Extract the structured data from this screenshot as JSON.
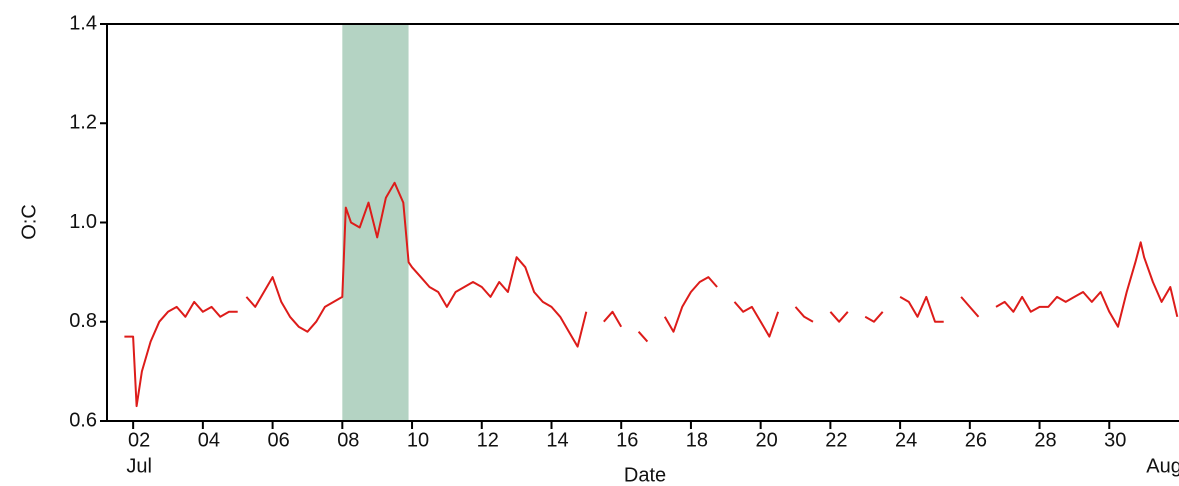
{
  "chart_data": {
    "type": "line",
    "xlabel": "Date",
    "ylabel": "O:C",
    "color": "#dd1c1a",
    "shade_color": "#b4d3c3",
    "shaded_span": [
      8.0,
      9.9
    ],
    "xlim": [
      1.25,
      32
    ],
    "ylim": [
      0.6,
      1.4
    ],
    "xticks": [
      {
        "value": 2,
        "label": "02"
      },
      {
        "value": 4,
        "label": "04"
      },
      {
        "value": 6,
        "label": "06"
      },
      {
        "value": 8,
        "label": "08"
      },
      {
        "value": 10,
        "label": "10"
      },
      {
        "value": 12,
        "label": "12"
      },
      {
        "value": 14,
        "label": "14"
      },
      {
        "value": 16,
        "label": "16"
      },
      {
        "value": 18,
        "label": "18"
      },
      {
        "value": 20,
        "label": "20"
      },
      {
        "value": 22,
        "label": "22"
      },
      {
        "value": 24,
        "label": "24"
      },
      {
        "value": 26,
        "label": "26"
      },
      {
        "value": 28,
        "label": "28"
      },
      {
        "value": 30,
        "label": "30"
      }
    ],
    "yticks": [
      0.6,
      0.8,
      {
        "value": 1.0,
        "label": "1.0"
      },
      1.2,
      1.4
    ],
    "month_labels": [
      {
        "value": 2,
        "label": "Jul"
      },
      {
        "value": 31.4,
        "label": "Aug"
      }
    ],
    "x": [
      1.75,
      2.0,
      2.1,
      2.25,
      2.5,
      2.75,
      3.0,
      3.25,
      3.5,
      3.75,
      4.0,
      4.25,
      4.5,
      4.75,
      5.0,
      5.1,
      5.25,
      5.5,
      5.75,
      6.0,
      6.25,
      6.5,
      6.75,
      7.0,
      7.25,
      7.5,
      7.75,
      8.0,
      8.1,
      8.25,
      8.5,
      8.75,
      9.0,
      9.25,
      9.5,
      9.75,
      9.9,
      10.0,
      10.25,
      10.5,
      10.75,
      11.0,
      11.25,
      11.5,
      11.75,
      12.0,
      12.25,
      12.5,
      12.75,
      13.0,
      13.25,
      13.5,
      13.75,
      14.0,
      14.25,
      14.5,
      14.75,
      15.0,
      15.25,
      15.5,
      15.75,
      16.0,
      16.25,
      16.5,
      16.75,
      17.0,
      17.25,
      17.5,
      17.75,
      18.0,
      18.25,
      18.5,
      18.75,
      19.0,
      19.25,
      19.5,
      19.75,
      20.0,
      20.25,
      20.5,
      20.75,
      21.0,
      21.25,
      21.5,
      21.75,
      22.0,
      22.25,
      22.5,
      22.75,
      23.0,
      23.25,
      23.5,
      23.75,
      24.0,
      24.25,
      24.5,
      24.75,
      25.0,
      25.25,
      25.5,
      25.75,
      26.0,
      26.25,
      26.5,
      26.75,
      27.0,
      27.25,
      27.5,
      27.75,
      28.0,
      28.25,
      28.5,
      28.75,
      29.0,
      29.25,
      29.5,
      29.75,
      30.0,
      30.25,
      30.5,
      30.75,
      30.9,
      31.0,
      31.25,
      31.5,
      31.75,
      31.95
    ],
    "values": [
      0.77,
      0.77,
      0.63,
      0.7,
      0.76,
      0.8,
      0.82,
      0.83,
      0.81,
      0.84,
      0.82,
      0.83,
      0.81,
      0.82,
      0.82,
      null,
      0.85,
      0.83,
      0.86,
      0.89,
      0.84,
      0.81,
      0.79,
      0.78,
      0.8,
      0.83,
      0.84,
      0.85,
      1.03,
      1.0,
      0.99,
      1.04,
      0.97,
      1.05,
      1.08,
      1.04,
      0.92,
      0.91,
      0.89,
      0.87,
      0.86,
      0.83,
      0.86,
      0.87,
      0.88,
      0.87,
      0.85,
      0.88,
      0.86,
      0.93,
      0.91,
      0.86,
      0.84,
      0.83,
      0.81,
      0.78,
      0.75,
      0.82,
      null,
      0.8,
      0.82,
      0.79,
      null,
      0.78,
      0.76,
      null,
      0.81,
      0.78,
      0.83,
      0.86,
      0.88,
      0.89,
      0.87,
      null,
      0.84,
      0.82,
      0.83,
      0.8,
      0.77,
      0.82,
      null,
      0.83,
      0.81,
      0.8,
      null,
      0.82,
      0.8,
      0.82,
      null,
      0.81,
      0.8,
      0.82,
      null,
      0.85,
      0.84,
      0.81,
      0.85,
      0.8,
      0.8,
      null,
      0.85,
      0.83,
      0.81,
      null,
      0.83,
      0.84,
      0.82,
      0.85,
      0.82,
      0.83,
      0.83,
      0.85,
      0.84,
      0.85,
      0.86,
      0.84,
      0.86,
      0.82,
      0.79,
      0.86,
      0.92,
      0.96,
      0.93,
      0.88,
      0.84,
      0.87,
      0.81
    ]
  }
}
